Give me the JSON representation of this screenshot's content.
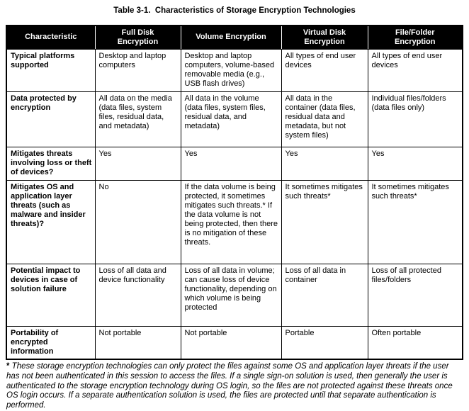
{
  "title": "Table 3-1.  Characteristics of Storage Encryption Technologies",
  "colors": {
    "header_bg": "#000000",
    "header_text": "#ffffff",
    "border": "#000000",
    "page_bg": "#ffffff"
  },
  "table": {
    "columns": [
      "Characteristic",
      "Full Disk\nEncryption",
      "Volume Encryption",
      "Virtual Disk\nEncryption",
      "File/Folder\nEncryption"
    ],
    "rows": [
      {
        "characteristic": "Typical platforms supported",
        "cells": [
          "Desktop and laptop computers",
          "Desktop and laptop computers, volume-based removable media (e.g., USB flash drives)",
          "All types of end user devices",
          "All types of end user devices"
        ]
      },
      {
        "characteristic": "Data protected by encryption",
        "cells": [
          "All data on the media (data files, system files, residual data, and metadata)",
          "All data in the volume (data files, system files, residual data, and metadata)",
          "All data in the container (data files, residual data and metadata, but not system files)",
          "Individual files/folders (data files only)"
        ]
      },
      {
        "characteristic": "Mitigates threats involving loss or theft of devices?",
        "cells": [
          "Yes",
          "Yes",
          "Yes",
          "Yes"
        ]
      },
      {
        "characteristic": "Mitigates OS and application layer threats (such as malware and insider threats)?",
        "cells": [
          "No",
          "If the data volume is being protected, it sometimes mitigates such threats.* If the data volume is not being protected, then there is no mitigation of these threats.",
          "It sometimes mitigates such threats*",
          "It sometimes mitigates such threats*"
        ]
      },
      {
        "characteristic": "Potential impact to devices in case of solution failure",
        "cells": [
          "Loss of all data and device functionality",
          "Loss of all data in volume; can cause loss of device functionality, depending on which volume is being protected",
          "Loss of all data in container",
          "Loss of all protected files/folders"
        ]
      },
      {
        "characteristic": "Portability of encrypted information",
        "cells": [
          "Not portable",
          "Not portable",
          "Portable",
          "Often portable"
        ]
      }
    ]
  },
  "footnote": {
    "marker": "* ",
    "text": "These storage encryption technologies can only protect the files against some OS and application layer threats if the user has not been authenticated in this session to access the files.  If a single sign-on solution is used, then generally the user is authenticated to the storage encryption technology during OS login, so the files are not protected against these threats once OS login occurs.  If a separate authentication solution is used, the files are protected until that separate authentication is performed."
  }
}
